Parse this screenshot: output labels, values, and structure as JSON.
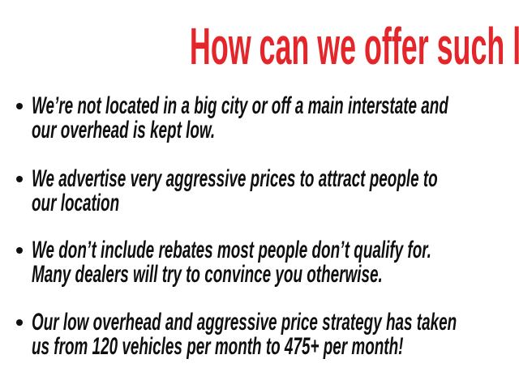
{
  "page": {
    "type": "presentation-slide",
    "background_color": "#ffffff"
  },
  "heading": {
    "text": "How can we offer such low prices?",
    "color": "#e42529"
  },
  "bullets": {
    "marker": "•",
    "text_color": "#0f0f0f",
    "items": [
      {
        "lines": [
          "We’re not located in a big city or off a main interstate and",
          "our overhead is kept low."
        ]
      },
      {
        "lines": [
          "We advertise very aggressive prices to attract people to",
          "our location"
        ]
      },
      {
        "lines": [
          "We don’t include rebates most people don’t qualify for.",
          "Many dealers will try to convince you otherwise."
        ]
      },
      {
        "lines": [
          "Our low overhead and aggressive price strategy has taken",
          "us from 120 vehicles per month to 475+ per month!"
        ]
      }
    ]
  }
}
